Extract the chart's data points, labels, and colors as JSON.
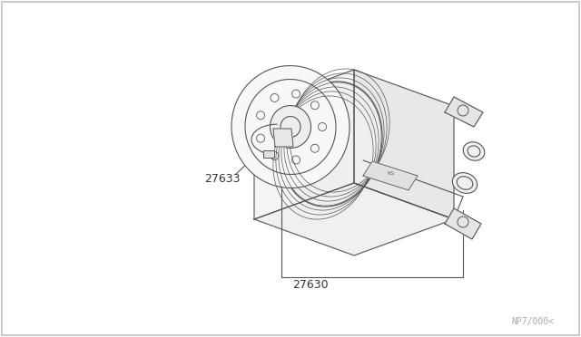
{
  "background_color": "#ffffff",
  "border_color": "#cccccc",
  "line_color": "#555555",
  "text_color": "#333333",
  "part_label_27630": "27630",
  "part_label_27633": "27633",
  "watermark": "NP7/000<",
  "figsize": [
    6.4,
    3.72
  ],
  "dpi": 100
}
